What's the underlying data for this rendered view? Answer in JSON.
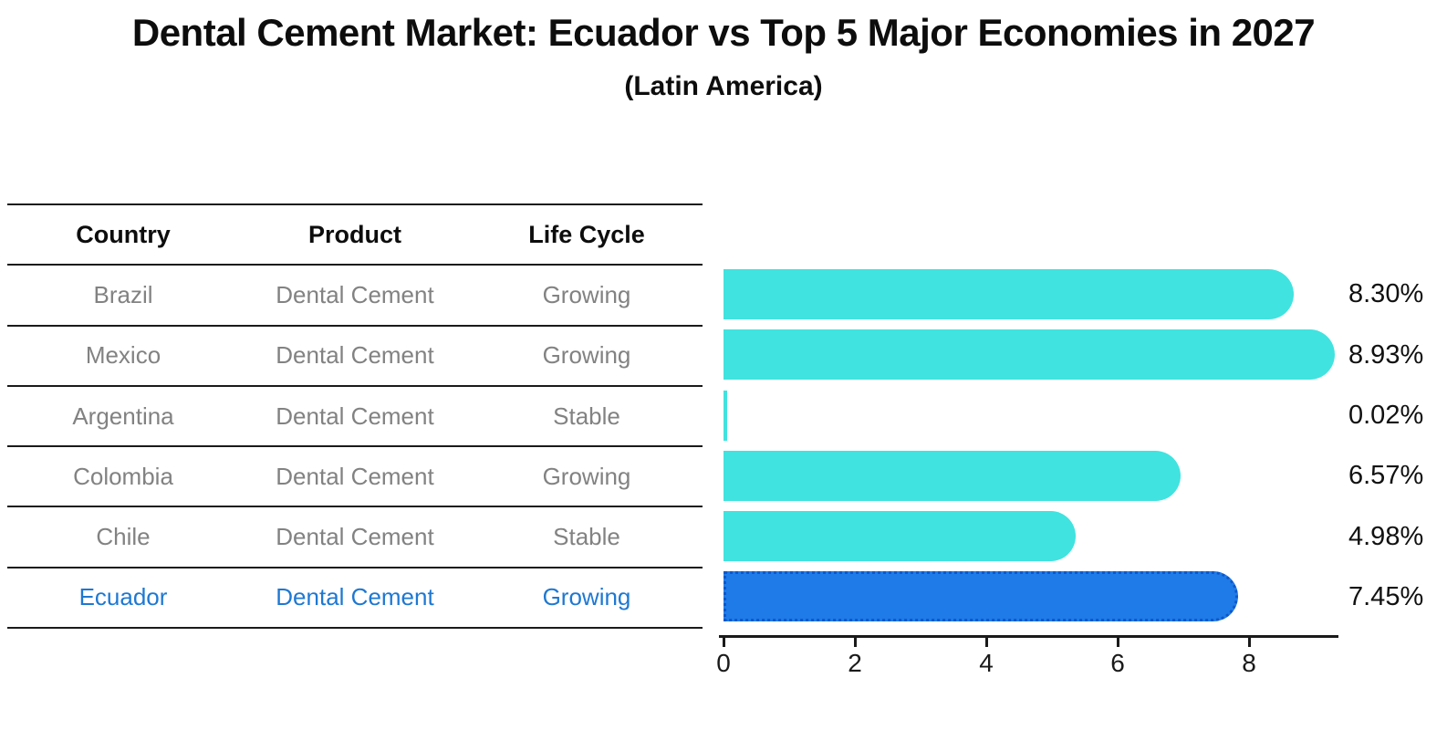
{
  "header": {
    "title": "Dental Cement Market: Ecuador vs Top 5 Major Economies in 2027",
    "subtitle": "(Latin America)"
  },
  "table": {
    "columns": [
      "Country",
      "Product",
      "Life Cycle"
    ],
    "rows": [
      {
        "country": "Brazil",
        "product": "Dental Cement",
        "life_cycle": "Growing",
        "highlight": false
      },
      {
        "country": "Mexico",
        "product": "Dental Cement",
        "life_cycle": "Growing",
        "highlight": false
      },
      {
        "country": "Argentina",
        "product": "Dental Cement",
        "life_cycle": "Stable",
        "highlight": false
      },
      {
        "country": "Colombia",
        "product": "Dental Cement",
        "life_cycle": "Growing",
        "highlight": false
      },
      {
        "country": "Chile",
        "product": "Dental Cement",
        "life_cycle": "Stable",
        "highlight": false
      },
      {
        "country": "Ecuador",
        "product": "Dental Cement",
        "life_cycle": "Growing",
        "highlight": true
      }
    ]
  },
  "chart_data": {
    "type": "bar",
    "orientation": "horizontal",
    "title": "Dental Cement Market: Ecuador vs Top 5 Major Economies in 2027",
    "subtitle": "(Latin America)",
    "categories": [
      "Brazil",
      "Mexico",
      "Argentina",
      "Colombia",
      "Chile",
      "Ecuador"
    ],
    "values": [
      8.3,
      8.93,
      0.02,
      6.57,
      4.98,
      7.45
    ],
    "value_labels": [
      "8.30%",
      "8.93%",
      "0.02%",
      "6.57%",
      "4.98%",
      "7.45%"
    ],
    "xlabel": "",
    "ylabel": "",
    "xlim": [
      0,
      9.4
    ],
    "xticks": [
      0,
      2,
      4,
      6,
      8
    ],
    "grid": false,
    "legend": null,
    "highlight_category": "Ecuador",
    "colors": {
      "bar": "#40e3df",
      "highlight_bar": "#1e7be8",
      "highlight_border": "#1057c8",
      "highlight_text": "#1e78d2",
      "row_text": "#828282",
      "axis": "#1a1a1a"
    }
  }
}
